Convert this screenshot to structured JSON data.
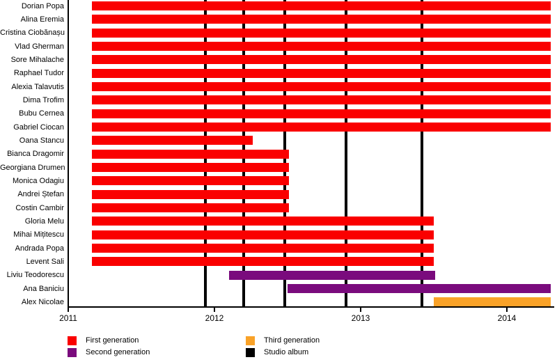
{
  "chart_data": {
    "type": "gantt-timeline",
    "title": "",
    "xlabel": "",
    "ylabel": "",
    "x_ticks": [
      2011,
      2012,
      2013,
      2014
    ],
    "x_tick_labels": [
      "2011",
      "2012",
      "2013",
      "2014"
    ],
    "xlim": [
      2011,
      2014.32
    ],
    "grid": false,
    "legend_position": "bottom",
    "rows": [
      {
        "name": "Dorian Popa",
        "generation": "first",
        "start": 2011.16,
        "end": 2014.3
      },
      {
        "name": "Alina Eremia",
        "generation": "first",
        "start": 2011.16,
        "end": 2014.3
      },
      {
        "name": "Cristina Ciobănașu",
        "generation": "first",
        "start": 2011.16,
        "end": 2014.3
      },
      {
        "name": "Vlad Gherman",
        "generation": "first",
        "start": 2011.16,
        "end": 2014.3
      },
      {
        "name": "Sore Mihalache",
        "generation": "first",
        "start": 2011.16,
        "end": 2014.3
      },
      {
        "name": "Raphael Tudor",
        "generation": "first",
        "start": 2011.16,
        "end": 2014.3
      },
      {
        "name": "Alexia Talavutis",
        "generation": "first",
        "start": 2011.16,
        "end": 2014.3
      },
      {
        "name": "Dima Trofim",
        "generation": "first",
        "start": 2011.16,
        "end": 2014.3
      },
      {
        "name": "Bubu Cernea",
        "generation": "first",
        "start": 2011.16,
        "end": 2014.3
      },
      {
        "name": "Gabriel Ciocan",
        "generation": "first",
        "start": 2011.16,
        "end": 2014.3
      },
      {
        "name": "Oana Stancu",
        "generation": "first",
        "start": 2011.16,
        "end": 2012.26
      },
      {
        "name": "Bianca Dragomir",
        "generation": "first",
        "start": 2011.16,
        "end": 2012.51
      },
      {
        "name": "Georgiana Drumen",
        "generation": "first",
        "start": 2011.16,
        "end": 2012.51
      },
      {
        "name": "Monica Odagiu",
        "generation": "first",
        "start": 2011.16,
        "end": 2012.51
      },
      {
        "name": "Andrei Ștefan",
        "generation": "first",
        "start": 2011.16,
        "end": 2012.51
      },
      {
        "name": "Costin Cambir",
        "generation": "first",
        "start": 2011.16,
        "end": 2012.51
      },
      {
        "name": "Gloria Melu",
        "generation": "first",
        "start": 2011.16,
        "end": 2013.5
      },
      {
        "name": "Mihai Mițitescu",
        "generation": "first",
        "start": 2011.16,
        "end": 2013.5
      },
      {
        "name": "Andrada Popa",
        "generation": "first",
        "start": 2011.16,
        "end": 2013.5
      },
      {
        "name": "Levent Sali",
        "generation": "first",
        "start": 2011.16,
        "end": 2013.5
      },
      {
        "name": "Liviu Teodorescu",
        "generation": "second",
        "start": 2012.1,
        "end": 2013.51
      },
      {
        "name": "Ana Baniciu",
        "generation": "second",
        "start": 2012.5,
        "end": 2014.3
      },
      {
        "name": "Alex Nicolae",
        "generation": "third",
        "start": 2013.5,
        "end": 2014.3
      }
    ],
    "album_lines": [
      2011.94,
      2012.2,
      2012.48,
      2012.9,
      2013.42
    ],
    "colors": {
      "first": "#FA0000",
      "second": "#7A0B7D",
      "third": "#F9A228",
      "album": "#000000",
      "axis": "#000000"
    },
    "legend": [
      {
        "label": "First generation",
        "color_key": "first"
      },
      {
        "label": "Second generation",
        "color_key": "second"
      },
      {
        "label": "Third generation",
        "color_key": "third"
      },
      {
        "label": "Studio album",
        "color_key": "album"
      }
    ]
  }
}
